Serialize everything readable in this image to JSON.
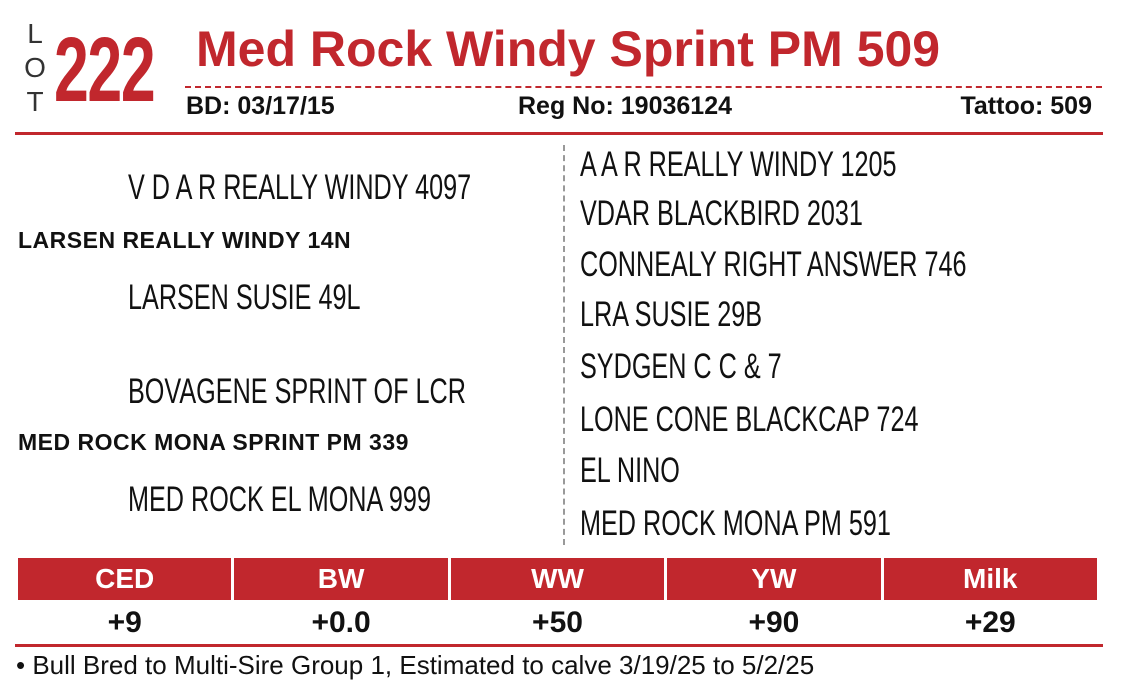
{
  "lot": {
    "letters": [
      "L",
      "O",
      "T"
    ],
    "number": "222"
  },
  "header": {
    "title": "Med Rock Windy Sprint PM 509",
    "bd_label": "BD:",
    "bd": "03/17/15",
    "reg_label": "Reg No:",
    "reg": "19036124",
    "tattoo_label": "Tattoo:",
    "tattoo": "509"
  },
  "pedigree": {
    "sire_sire": "V D A R REALLY WINDY 4097",
    "sire": "LARSEN REALLY WINDY 14N",
    "sire_dam": "LARSEN SUSIE 49L",
    "dam_sire": "BOVAGENE SPRINT OF LCR",
    "dam": "MED ROCK MONA SPRINT PM 339",
    "dam_dam": "MED ROCK EL MONA 999",
    "ancestors": [
      "A A R REALLY WINDY 1205",
      "VDAR BLACKBIRD 2031",
      "CONNEALY RIGHT ANSWER 746",
      "LRA SUSIE 29B",
      "SYDGEN C C & 7",
      "LONE CONE BLACKCAP 724",
      "EL NINO",
      "MED ROCK MONA PM 591"
    ]
  },
  "epds": {
    "headers": [
      "CED",
      "BW",
      "WW",
      "YW",
      "Milk"
    ],
    "values": [
      "+9",
      "+0.0",
      "+50",
      "+90",
      "+29"
    ]
  },
  "note": "• Bull Bred to Multi-Sire Group 1, Estimated to calve 3/19/25 to 5/2/25"
}
